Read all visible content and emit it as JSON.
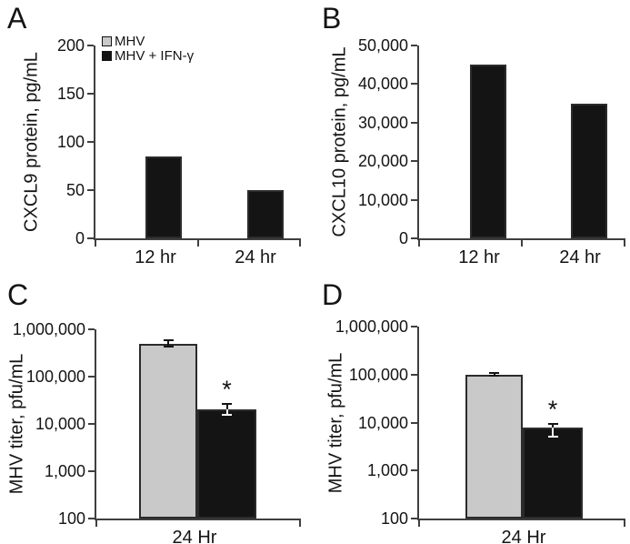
{
  "figure": {
    "description": "Four-panel scientific bar chart figure",
    "colors": {
      "background": "#ffffff",
      "black_series": "#141414",
      "gray_series": "#c9c9c9",
      "axis": "#3f3f3f"
    },
    "panel_letters": [
      "A",
      "B",
      "C",
      "D"
    ]
  },
  "chart_data": [
    {
      "panel": "A",
      "type": "bar",
      "scale": "linear",
      "ylabel": "CXCL9 protein, pg/mL",
      "ylim": [
        0,
        200
      ],
      "yticks": [
        {
          "v": 0,
          "label": "0"
        },
        {
          "v": 50,
          "label": "50"
        },
        {
          "v": 100,
          "label": "100"
        },
        {
          "v": 150,
          "label": "150"
        },
        {
          "v": 200,
          "label": "200"
        }
      ],
      "categories": [
        "12 hr",
        "24 hr"
      ],
      "legend": [
        {
          "name": "MHV",
          "color": "#c9c9c9"
        },
        {
          "name": "MHV + IFN-γ",
          "color": "#141414"
        }
      ],
      "legend_position": "upper-left-inside",
      "grid": false,
      "series": [
        {
          "name": "MHV + IFN-γ",
          "color": "#141414",
          "values": [
            85,
            50
          ]
        }
      ]
    },
    {
      "panel": "B",
      "type": "bar",
      "scale": "linear",
      "ylabel": "CXCL10 protein, pg/mL",
      "ylim": [
        0,
        50000
      ],
      "yticks": [
        {
          "v": 0,
          "label": "0"
        },
        {
          "v": 10000,
          "label": "10,000"
        },
        {
          "v": 20000,
          "label": "20,000"
        },
        {
          "v": 30000,
          "label": "30,000"
        },
        {
          "v": 40000,
          "label": "40,000"
        },
        {
          "v": 50000,
          "label": "50,000"
        }
      ],
      "categories": [
        "12 hr",
        "24 hr"
      ],
      "grid": false,
      "series": [
        {
          "name": "MHV + IFN-γ",
          "color": "#141414",
          "values": [
            45000,
            35000
          ]
        }
      ]
    },
    {
      "panel": "C",
      "type": "bar",
      "scale": "log",
      "ylabel": "MHV titer, pfu/mL",
      "ylim": [
        100,
        1000000
      ],
      "yticks": [
        {
          "v": 100,
          "label": "100"
        },
        {
          "v": 1000,
          "label": "1,000"
        },
        {
          "v": 10000,
          "label": "10,000"
        },
        {
          "v": 100000,
          "label": "100,000"
        },
        {
          "v": 1000000,
          "label": "1,000,000"
        }
      ],
      "categories": [
        "24 Hr"
      ],
      "grid": false,
      "series": [
        {
          "name": "MHV",
          "color": "#c9c9c9",
          "values": [
            500000
          ],
          "err_hi": [
            600000
          ],
          "err_lo": [
            430000
          ]
        },
        {
          "name": "MHV + IFN-γ",
          "color": "#141414",
          "values": [
            20000
          ],
          "err_hi": [
            27000
          ],
          "err_lo": [
            15500
          ],
          "sig": [
            "*"
          ]
        }
      ]
    },
    {
      "panel": "D",
      "type": "bar",
      "scale": "log",
      "ylabel": "MHV titer, pfu/mL",
      "ylim": [
        100,
        1000000
      ],
      "yticks": [
        {
          "v": 100,
          "label": "100"
        },
        {
          "v": 1000,
          "label": "1,000"
        },
        {
          "v": 10000,
          "label": "10,000"
        },
        {
          "v": 100000,
          "label": "100,000"
        },
        {
          "v": 1000000,
          "label": "1,000,000"
        }
      ],
      "categories": [
        "24 Hr"
      ],
      "grid": false,
      "series": [
        {
          "name": "MHV",
          "color": "#c9c9c9",
          "values": [
            100000
          ],
          "err_hi": [
            108000
          ],
          "err_lo": [
            93000
          ]
        },
        {
          "name": "MHV + IFN-γ",
          "color": "#141414",
          "values": [
            8000
          ],
          "err_hi": [
            9500
          ],
          "err_lo": [
            5000
          ],
          "sig": [
            "*"
          ]
        }
      ]
    }
  ]
}
